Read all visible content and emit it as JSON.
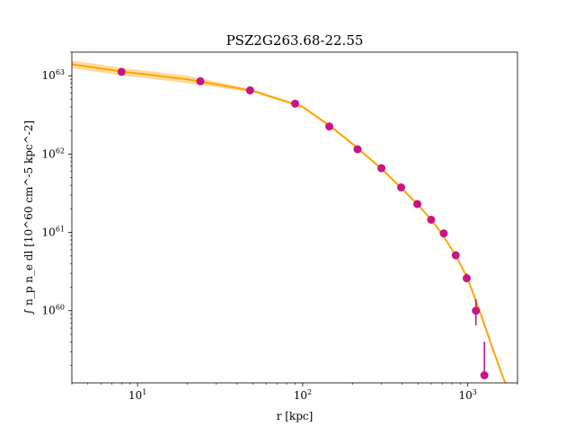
{
  "chart_data": {
    "type": "scatter",
    "title": "PSZ2G263.68-22.55",
    "xlabel": "r [kpc]",
    "ylabel": "∫ n_p n_e dl [10^60 cm^-5 kpc^-2]",
    "xscale": "log",
    "yscale": "log",
    "xlim": [
      4,
      2000
    ],
    "ylim": [
      1.2e+59,
      2e+63
    ],
    "x_ticks": [
      {
        "value": 10,
        "base": "10",
        "exp": "1"
      },
      {
        "value": 100,
        "base": "10",
        "exp": "2"
      },
      {
        "value": 1000,
        "base": "10",
        "exp": "3"
      }
    ],
    "y_ticks": [
      {
        "value": 1e+60,
        "base": "10",
        "exp": "60"
      },
      {
        "value": 1e+61,
        "base": "10",
        "exp": "61"
      },
      {
        "value": 1e+62,
        "base": "10",
        "exp": "62"
      },
      {
        "value": 1e+63,
        "base": "10",
        "exp": "63"
      }
    ],
    "grid": false,
    "colors": {
      "data": "#c71585",
      "model": "#ffa500",
      "band": "#ffd28a"
    },
    "series": [
      {
        "kind": "points",
        "x": [
          8,
          24,
          48,
          90,
          145,
          215,
          300,
          395,
          495,
          600,
          715,
          845,
          985,
          1120,
          1260
        ],
        "y": [
          1.12e+63,
          8.5e+62,
          6.5e+62,
          4.4e+62,
          2.25e+62,
          1.15e+62,
          6.6e+61,
          3.75e+61,
          2.3e+61,
          1.45e+61,
          9.7e+60,
          5.1e+60,
          2.6e+60,
          1e+60,
          1.5e+59
        ],
        "err_low": [
          null,
          null,
          null,
          null,
          null,
          null,
          null,
          null,
          null,
          null,
          null,
          null,
          2.3e+60,
          6.5e+59,
          null
        ],
        "err_high": [
          null,
          null,
          null,
          null,
          null,
          null,
          null,
          null,
          null,
          null,
          null,
          null,
          3e+60,
          1.4e+60,
          4e+59
        ]
      },
      {
        "kind": "model",
        "x": [
          4,
          8,
          20,
          50,
          100,
          150,
          200,
          300,
          400,
          500,
          600,
          700,
          850,
          1000,
          1200,
          1400,
          1600,
          1700
        ],
        "y": [
          1.4e+63,
          1.13e+63,
          9e+62,
          6.4e+62,
          4e+62,
          2.2e+62,
          1.35e+62,
          6.5e+61,
          3.6e+61,
          2.25e+61,
          1.45e+61,
          9.5e+60,
          5e+60,
          2.55e+60,
          9e+59,
          3.5e+59,
          1.6e+59,
          1.15e+59
        ]
      }
    ]
  }
}
